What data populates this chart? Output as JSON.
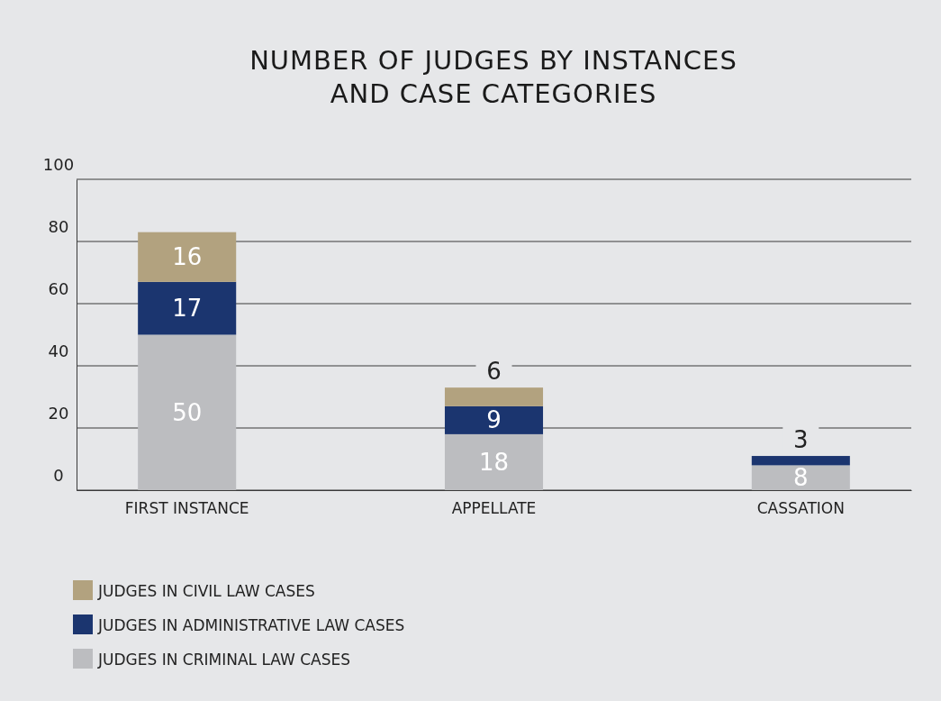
{
  "chart_data": {
    "type": "bar",
    "title": "NUMBER OF JUDGES BY INSTANCES\nAND CASE CATEGORIES",
    "categories": [
      "FIRST INSTANCE",
      "APPELLATE",
      "CASSATION"
    ],
    "stacked": true,
    "series": [
      {
        "name": "JUDGES IN CRIMINAL LAW CASES",
        "color": "#bcbdc0",
        "values": [
          50,
          18,
          8
        ]
      },
      {
        "name": "JUDGES IN ADMINISTRATIVE LAW CASES",
        "color": "#1b356f",
        "values": [
          17,
          9,
          3
        ]
      },
      {
        "name": "JUDGES IN CIVIL LAW CASES",
        "color": "#b2a27f",
        "values": [
          16,
          6,
          null
        ]
      }
    ],
    "ylim": [
      0,
      100
    ],
    "yticks": [
      0,
      20,
      40,
      60,
      80,
      100
    ],
    "grid": "y",
    "legend": "bottom",
    "data_labels": true
  }
}
